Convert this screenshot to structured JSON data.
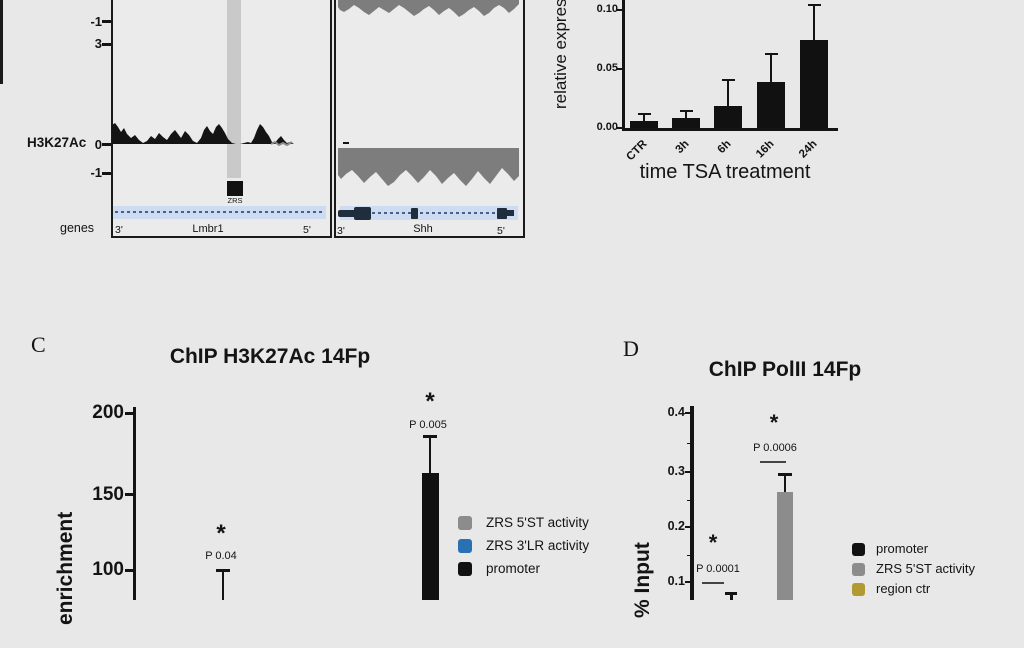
{
  "colors": {
    "background": "#e8e8e8",
    "panel_bg": "#ebebeb",
    "ink": "#141414",
    "signal_black": "#141414",
    "signal_gray": "#7d7d7d",
    "highlight_band_gray": "#c9c9c9",
    "gene_band_blue": "#cddcf0",
    "gene_model_dark": "#202d3d",
    "gene_dash_blue": "#44618a",
    "legend_gray": "#8c8c8c",
    "legend_blue": "#2a71b4",
    "legend_black": "#111111",
    "legend_olive": "#b29a33"
  },
  "genome_browser": {
    "upper_tick_labels": [
      "-1",
      "3"
    ],
    "signal_track_label": "H3K27Ac",
    "signal_zero_label": "0",
    "signal_neg_label": "-1",
    "zrs_label": "ZRS",
    "genes_row_label": "genes",
    "left_panel": {
      "left_end": "3'",
      "gene_name": "Lmbr1",
      "right_end": "5'"
    },
    "right_panel": {
      "left_end": "3'",
      "gene_name": "Shh",
      "right_end": "5'"
    }
  },
  "tsa_chart": {
    "ylabel": "relative expression",
    "xlabel": "time TSA treatment",
    "ytick_labels": [
      "0.10",
      "0.05",
      "0.00"
    ]
  },
  "panel_c": {
    "letter": "C",
    "title": "ChIP H3K27Ac 14Fp",
    "ylabel": "enrichment",
    "ytick_labels": [
      "200",
      "150",
      "100"
    ],
    "legend": [
      {
        "label": "ZRS 5'ST activity",
        "color": "#8c8c8c"
      },
      {
        "label": "ZRS 3'LR activity",
        "color": "#2a71b4"
      },
      {
        "label": "promoter",
        "color": "#111111"
      }
    ]
  },
  "panel_d": {
    "letter": "D",
    "title": "ChIP PolII 14Fp",
    "ylabel": "% Input",
    "ytick_labels": [
      "0.4",
      "0.3",
      "0.2",
      "0.1"
    ],
    "legend": [
      {
        "label": "promoter",
        "color": "#111111"
      },
      {
        "label": "ZRS 5'ST activity",
        "color": "#8c8c8c"
      },
      {
        "label": "region ctr",
        "color": "#b29a33"
      }
    ]
  },
  "chart_data": [
    {
      "type": "bar",
      "panel": "B",
      "title": "",
      "xlabel": "time TSA treatment",
      "ylabel": "relative expression",
      "categories": [
        "CTR",
        "3h",
        "6h",
        "16h",
        "24h"
      ],
      "values": [
        0.006,
        0.009,
        0.019,
        0.039,
        0.075
      ],
      "error_top": [
        0.012,
        0.015,
        0.041,
        0.063,
        0.105
      ],
      "ylim": [
        0,
        0.115
      ],
      "yticks": [
        0.0,
        0.05,
        0.1
      ],
      "bar_color": "#111111",
      "grid": false,
      "legend_position": "none"
    },
    {
      "type": "bar",
      "panel": "C",
      "title": "ChIP H3K27Ac 14Fp",
      "ylabel": "enrichment",
      "yticks": [
        100,
        150,
        200
      ],
      "ylim_visible_top": 200,
      "bars": [
        {
          "value": null,
          "error_top": 100,
          "p": "P 0.04",
          "sig": "*",
          "color": "#111111"
        },
        {
          "value": 162,
          "error_top": 185,
          "p": "P 0.005",
          "sig": "*",
          "color": "#111111"
        }
      ],
      "legend": [
        "ZRS 5'ST activity",
        "ZRS 3'LR activity",
        "promoter"
      ],
      "legend_colors": [
        "#8c8c8c",
        "#2a71b4",
        "#111111"
      ],
      "legend_position": "right"
    },
    {
      "type": "bar",
      "panel": "D",
      "title": "ChIP PolII 14Fp",
      "ylabel": "% Input",
      "yticks": [
        0.1,
        0.2,
        0.3,
        0.4
      ],
      "ylim_visible_top": 0.4,
      "bars": [
        {
          "value": null,
          "error_top": 0.08,
          "p": "P 0.0001",
          "sig": "*",
          "color": "#111111"
        },
        {
          "value": 0.26,
          "error_top": 0.29,
          "p": "P 0.0006",
          "sig": "*",
          "color": "#8c8c8c"
        }
      ],
      "legend": [
        "promoter",
        "ZRS 5'ST activity",
        "region ctr"
      ],
      "legend_colors": [
        "#111111",
        "#8c8c8c",
        "#b29a33"
      ],
      "legend_position": "right"
    }
  ]
}
